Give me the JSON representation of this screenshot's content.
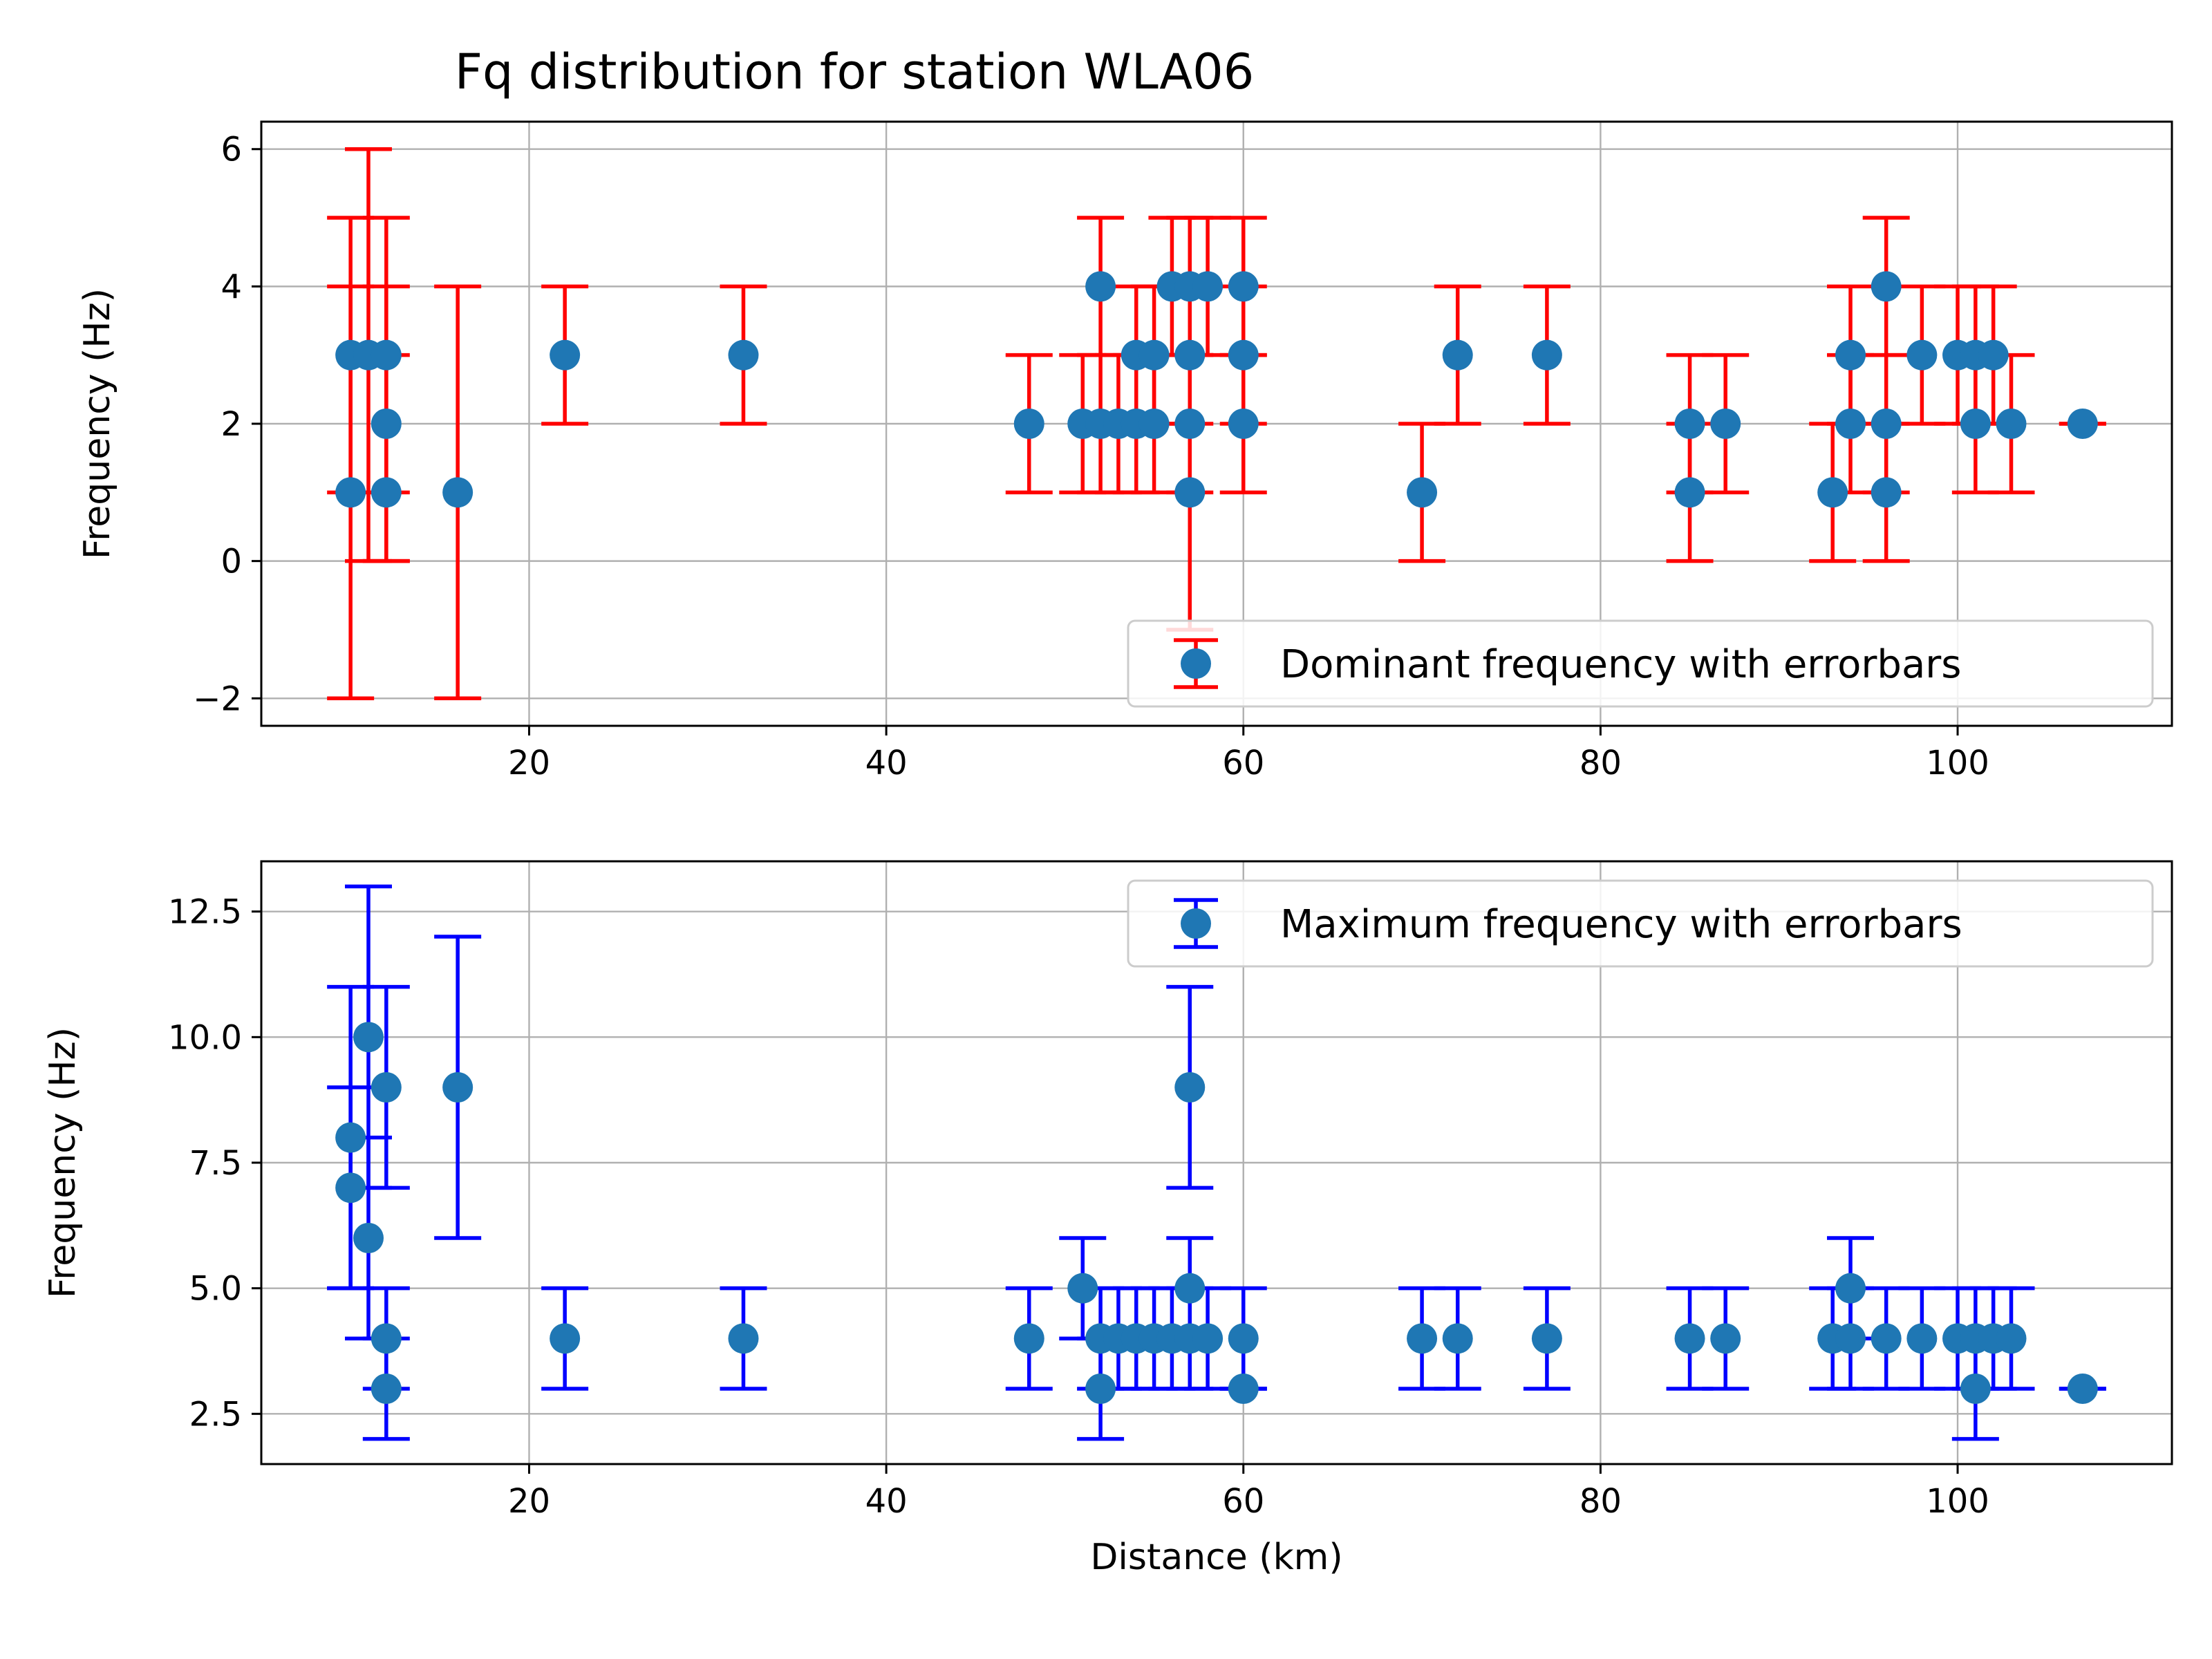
{
  "figure": {
    "title": "Fq distribution for station WLA06"
  },
  "chart_data": [
    {
      "type": "scatter",
      "title": "Fq distribution for station WLA06",
      "xlabel": "",
      "ylabel": "Frequency (Hz)",
      "xlim": [
        5,
        112
      ],
      "ylim": [
        -2.4,
        6.4
      ],
      "xticks": [
        20,
        40,
        60,
        80,
        100
      ],
      "yticks": [
        -2,
        0,
        2,
        4,
        6
      ],
      "ytick_labels": [
        "−2",
        "0",
        "2",
        "4",
        "6"
      ],
      "grid": true,
      "legend_position": "lower right",
      "series": [
        {
          "name": "Dominant frequency with errorbars",
          "marker_color": "#1f77b4",
          "errorbar_color": "#ff0000",
          "points": [
            {
              "x": 10,
              "y": 1,
              "low": -2,
              "high": 4
            },
            {
              "x": 10,
              "y": 3,
              "low": 1,
              "high": 5
            },
            {
              "x": 11,
              "y": 3,
              "low": 0,
              "high": 6
            },
            {
              "x": 12,
              "y": 3,
              "low": 1,
              "high": 5
            },
            {
              "x": 12,
              "y": 2,
              "low": 0,
              "high": 4
            },
            {
              "x": 12,
              "y": 1,
              "low": 0,
              "high": 3
            },
            {
              "x": 16,
              "y": 1,
              "low": -2,
              "high": 4
            },
            {
              "x": 22,
              "y": 3,
              "low": 2,
              "high": 4
            },
            {
              "x": 32,
              "y": 3,
              "low": 2,
              "high": 4
            },
            {
              "x": 48,
              "y": 2,
              "low": 1,
              "high": 3
            },
            {
              "x": 51,
              "y": 2,
              "low": 1,
              "high": 3
            },
            {
              "x": 52,
              "y": 2,
              "low": 1,
              "high": 3
            },
            {
              "x": 52,
              "y": 4,
              "low": 3,
              "high": 5
            },
            {
              "x": 53,
              "y": 2,
              "low": 1,
              "high": 3
            },
            {
              "x": 54,
              "y": 2,
              "low": 1,
              "high": 3
            },
            {
              "x": 54,
              "y": 3,
              "low": 2,
              "high": 4
            },
            {
              "x": 55,
              "y": 2,
              "low": 1,
              "high": 3
            },
            {
              "x": 55,
              "y": 3,
              "low": 2,
              "high": 4
            },
            {
              "x": 56,
              "y": 4,
              "low": 3,
              "high": 5
            },
            {
              "x": 57,
              "y": 4,
              "low": 3,
              "high": 5
            },
            {
              "x": 57,
              "y": 3,
              "low": 2,
              "high": 4
            },
            {
              "x": 57,
              "y": 2,
              "low": 1,
              "high": 3
            },
            {
              "x": 57,
              "y": 1,
              "low": -1,
              "high": 3
            },
            {
              "x": 58,
              "y": 4,
              "low": 3,
              "high": 5
            },
            {
              "x": 60,
              "y": 4,
              "low": 3,
              "high": 5
            },
            {
              "x": 60,
              "y": 3,
              "low": 2,
              "high": 4
            },
            {
              "x": 60,
              "y": 2,
              "low": 1,
              "high": 3
            },
            {
              "x": 70,
              "y": 1,
              "low": 0,
              "high": 2
            },
            {
              "x": 72,
              "y": 3,
              "low": 2,
              "high": 4
            },
            {
              "x": 77,
              "y": 3,
              "low": 2,
              "high": 4
            },
            {
              "x": 85,
              "y": 2,
              "low": 1,
              "high": 3
            },
            {
              "x": 85,
              "y": 1,
              "low": 0,
              "high": 2
            },
            {
              "x": 87,
              "y": 2,
              "low": 1,
              "high": 3
            },
            {
              "x": 93,
              "y": 1,
              "low": 0,
              "high": 2
            },
            {
              "x": 94,
              "y": 3,
              "low": 2,
              "high": 4
            },
            {
              "x": 94,
              "y": 2,
              "low": 1,
              "high": 3
            },
            {
              "x": 96,
              "y": 4,
              "low": 3,
              "high": 5
            },
            {
              "x": 96,
              "y": 2,
              "low": 1,
              "high": 3
            },
            {
              "x": 96,
              "y": 1,
              "low": 0,
              "high": 2
            },
            {
              "x": 98,
              "y": 3,
              "low": 2,
              "high": 4
            },
            {
              "x": 100,
              "y": 3,
              "low": 2,
              "high": 4
            },
            {
              "x": 101,
              "y": 3,
              "low": 2,
              "high": 4
            },
            {
              "x": 101,
              "y": 2,
              "low": 1,
              "high": 3
            },
            {
              "x": 102,
              "y": 3,
              "low": 2,
              "high": 4
            },
            {
              "x": 103,
              "y": 2,
              "low": 1,
              "high": 3
            },
            {
              "x": 107,
              "y": 2,
              "low": 2,
              "high": 2
            }
          ]
        }
      ]
    },
    {
      "type": "scatter",
      "title": "",
      "xlabel": "Distance (km)",
      "ylabel": "Frequency (Hz)",
      "xlim": [
        5,
        112
      ],
      "ylim": [
        1.5,
        13.5
      ],
      "xticks": [
        20,
        40,
        60,
        80,
        100
      ],
      "yticks": [
        2.5,
        5,
        7.5,
        10,
        12.5
      ],
      "ytick_labels": [
        "2.5",
        "5.0",
        "7.5",
        "10.0",
        "12.5"
      ],
      "grid": true,
      "legend_position": "upper right",
      "series": [
        {
          "name": "Maximum frequency with errorbars",
          "marker_color": "#1f77b4",
          "errorbar_color": "#0000ff",
          "points": [
            {
              "x": 10,
              "y": 8,
              "low": 5,
              "high": 11
            },
            {
              "x": 10,
              "y": 7,
              "low": 5,
              "high": 9
            },
            {
              "x": 11,
              "y": 10,
              "low": 7,
              "high": 13
            },
            {
              "x": 11,
              "y": 6,
              "low": 4,
              "high": 8
            },
            {
              "x": 12,
              "y": 9,
              "low": 7,
              "high": 11
            },
            {
              "x": 12,
              "y": 4,
              "low": 3,
              "high": 5
            },
            {
              "x": 12,
              "y": 3,
              "low": 2,
              "high": 4
            },
            {
              "x": 16,
              "y": 9,
              "low": 6,
              "high": 12
            },
            {
              "x": 22,
              "y": 4,
              "low": 3,
              "high": 5
            },
            {
              "x": 32,
              "y": 4,
              "low": 3,
              "high": 5
            },
            {
              "x": 48,
              "y": 4,
              "low": 3,
              "high": 5
            },
            {
              "x": 51,
              "y": 5,
              "low": 4,
              "high": 6
            },
            {
              "x": 52,
              "y": 4,
              "low": 3,
              "high": 5
            },
            {
              "x": 52,
              "y": 3,
              "low": 2,
              "high": 4
            },
            {
              "x": 53,
              "y": 4,
              "low": 3,
              "high": 5
            },
            {
              "x": 54,
              "y": 4,
              "low": 3,
              "high": 5
            },
            {
              "x": 55,
              "y": 4,
              "low": 3,
              "high": 5
            },
            {
              "x": 56,
              "y": 4,
              "low": 3,
              "high": 5
            },
            {
              "x": 57,
              "y": 9,
              "low": 7,
              "high": 11
            },
            {
              "x": 57,
              "y": 5,
              "low": 4,
              "high": 6
            },
            {
              "x": 57,
              "y": 4,
              "low": 3,
              "high": 5
            },
            {
              "x": 58,
              "y": 4,
              "low": 3,
              "high": 5
            },
            {
              "x": 60,
              "y": 4,
              "low": 3,
              "high": 5
            },
            {
              "x": 60,
              "y": 3,
              "low": 3,
              "high": 3
            },
            {
              "x": 70,
              "y": 4,
              "low": 3,
              "high": 5
            },
            {
              "x": 72,
              "y": 4,
              "low": 3,
              "high": 5
            },
            {
              "x": 77,
              "y": 4,
              "low": 3,
              "high": 5
            },
            {
              "x": 85,
              "y": 4,
              "low": 3,
              "high": 5
            },
            {
              "x": 87,
              "y": 4,
              "low": 3,
              "high": 5
            },
            {
              "x": 93,
              "y": 4,
              "low": 3,
              "high": 5
            },
            {
              "x": 94,
              "y": 5,
              "low": 4,
              "high": 6
            },
            {
              "x": 94,
              "y": 4,
              "low": 3,
              "high": 5
            },
            {
              "x": 96,
              "y": 4,
              "low": 3,
              "high": 5
            },
            {
              "x": 98,
              "y": 4,
              "low": 3,
              "high": 5
            },
            {
              "x": 100,
              "y": 4,
              "low": 3,
              "high": 5
            },
            {
              "x": 101,
              "y": 4,
              "low": 3,
              "high": 5
            },
            {
              "x": 101,
              "y": 3,
              "low": 2,
              "high": 4
            },
            {
              "x": 102,
              "y": 4,
              "low": 3,
              "high": 5
            },
            {
              "x": 103,
              "y": 4,
              "low": 3,
              "high": 5
            },
            {
              "x": 107,
              "y": 3,
              "low": 3,
              "high": 3
            }
          ]
        }
      ]
    }
  ]
}
